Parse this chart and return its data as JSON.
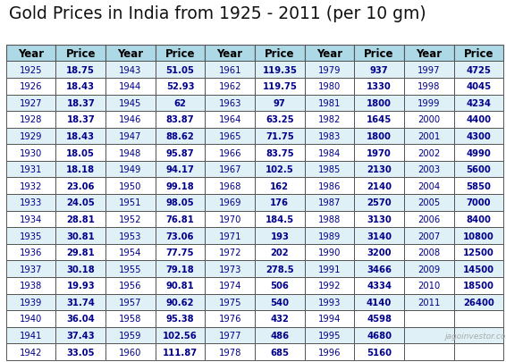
{
  "title": "Gold Prices in India from 1925 - 2011 (per 10 gm)",
  "title_fontsize": 13.5,
  "background_color": "#ffffff",
  "header_bg": "#add8e6",
  "row_bg_odd": "#dff0f7",
  "row_bg_even": "#ffffff",
  "border_color": "#555555",
  "header_text_color": "#000000",
  "row_text_color": "#00008b",
  "watermark": "jagoinvestor.com",
  "columns": [
    "Year",
    "Price",
    "Year",
    "Price",
    "Year",
    "Price",
    "Year",
    "Price",
    "Year",
    "Price"
  ],
  "data": [
    [
      1925,
      "18.75",
      1943,
      "51.05",
      1961,
      "119.35",
      1979,
      "937",
      1997,
      "4725"
    ],
    [
      1926,
      "18.43",
      1944,
      "52.93",
      1962,
      "119.75",
      1980,
      "1330",
      1998,
      "4045"
    ],
    [
      1927,
      "18.37",
      1945,
      "62",
      1963,
      "97",
      1981,
      "1800",
      1999,
      "4234"
    ],
    [
      1928,
      "18.37",
      1946,
      "83.87",
      1964,
      "63.25",
      1982,
      "1645",
      2000,
      "4400"
    ],
    [
      1929,
      "18.43",
      1947,
      "88.62",
      1965,
      "71.75",
      1983,
      "1800",
      2001,
      "4300"
    ],
    [
      1930,
      "18.05",
      1948,
      "95.87",
      1966,
      "83.75",
      1984,
      "1970",
      2002,
      "4990"
    ],
    [
      1931,
      "18.18",
      1949,
      "94.17",
      1967,
      "102.5",
      1985,
      "2130",
      2003,
      "5600"
    ],
    [
      1932,
      "23.06",
      1950,
      "99.18",
      1968,
      "162",
      1986,
      "2140",
      2004,
      "5850"
    ],
    [
      1933,
      "24.05",
      1951,
      "98.05",
      1969,
      "176",
      1987,
      "2570",
      2005,
      "7000"
    ],
    [
      1934,
      "28.81",
      1952,
      "76.81",
      1970,
      "184.5",
      1988,
      "3130",
      2006,
      "8400"
    ],
    [
      1935,
      "30.81",
      1953,
      "73.06",
      1971,
      "193",
      1989,
      "3140",
      2007,
      "10800"
    ],
    [
      1936,
      "29.81",
      1954,
      "77.75",
      1972,
      "202",
      1990,
      "3200",
      2008,
      "12500"
    ],
    [
      1937,
      "30.18",
      1955,
      "79.18",
      1973,
      "278.5",
      1991,
      "3466",
      2009,
      "14500"
    ],
    [
      1938,
      "19.93",
      1956,
      "90.81",
      1974,
      "506",
      1992,
      "4334",
      2010,
      "18500"
    ],
    [
      1939,
      "31.74",
      1957,
      "90.62",
      1975,
      "540",
      1993,
      "4140",
      2011,
      "26400"
    ],
    [
      1940,
      "36.04",
      1958,
      "95.38",
      1976,
      "432",
      1994,
      "4598",
      null,
      null
    ],
    [
      1941,
      "37.43",
      1959,
      "102.56",
      1977,
      "486",
      1995,
      "4680",
      null,
      null
    ],
    [
      1942,
      "33.05",
      1960,
      "111.87",
      1978,
      "685",
      1996,
      "5160",
      null,
      null
    ]
  ]
}
